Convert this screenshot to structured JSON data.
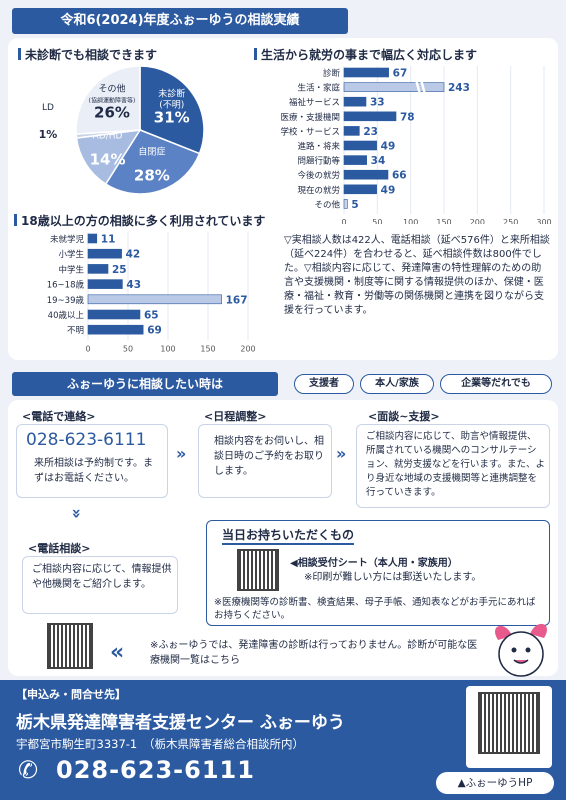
{
  "header": {
    "title": "令和6(2024)年度ふぉーゆうの相談実績"
  },
  "pie": {
    "heading": "未診断でも相談できます",
    "slices": [
      {
        "label": "未診断\n(不明)",
        "value": 31,
        "color": "#2c5aa0",
        "text_color": "#ffffff"
      },
      {
        "label": "自閉症",
        "value": 28,
        "color": "#5b82c4",
        "text_color": "#ffffff"
      },
      {
        "label": "AD/HD",
        "value": 14,
        "color": "#a7bce0",
        "text_color": "#ffffff"
      },
      {
        "label": "LD",
        "value": 1,
        "color": "#c9d4e6",
        "text_color": "#1f2a44"
      },
      {
        "label": "その他",
        "sublabel": "(協調運動障害等)",
        "value": 26,
        "color": "#e9eef7",
        "text_color": "#1f2a44"
      }
    ]
  },
  "chart_data": [
    {
      "type": "bar",
      "title": "生活から就労の事まで幅広く対応します",
      "categories": [
        "診断",
        "生活・家庭",
        "福祉サービス",
        "医療・支援機関",
        "学校・サービス",
        "進路・将来",
        "問題行動等",
        "今後の就労",
        "現在の就労",
        "その他"
      ],
      "values": [
        67,
        243,
        33,
        78,
        23,
        49,
        34,
        66,
        49,
        5
      ],
      "xlim": [
        0,
        300
      ],
      "xticks": [
        0,
        50,
        100,
        150,
        200,
        250,
        300
      ],
      "axis_break": true
    },
    {
      "type": "bar",
      "title": "18歳以上の方の相談に多く利用されています",
      "categories": [
        "未就学児",
        "小学生",
        "中学生",
        "16~18歳",
        "19~39歳",
        "40歳以上",
        "不明"
      ],
      "values": [
        11,
        42,
        25,
        43,
        167,
        65,
        69
      ],
      "xlim": [
        0,
        200
      ],
      "xticks": [
        0,
        50,
        100,
        150,
        200
      ]
    }
  ],
  "stats_note": "▽実相談人数は422人、電話相談（延べ576件）と来所相談（延べ224件）を合わせると、延べ相談件数は800件でした。▽相談内容に応じて、発達障害の特性理解のための助言や支援機関・制度等に関する情報提供のほか、保健・医療・福祉・教育・労働等の関係機関と連携を図りながら支援を行っています。",
  "howto": {
    "title": "ふぉーゆうに相談したい時は",
    "tags": [
      "支援者",
      "本人/家族",
      "企業等だれでも"
    ],
    "phone": {
      "heading": "<電話で連絡>",
      "number": "028-623-6111",
      "text": "来所相談は予約制です。まずはお電話ください。"
    },
    "schedule": {
      "heading": "<日程調整>",
      "text": "相談内容をお伺いし、相談日時のご予約をお取りします。"
    },
    "interview": {
      "heading": "<面談~支援>",
      "text": "ご相談内容に応じて、助言や情報提供、所属されている機関へのコンサルテーション、就労支援などを行います。また、より身近な地域の支援機関等と連携調整を行っていきます。"
    },
    "phone_consult": {
      "heading": "<電話相談>",
      "text": "ご相談内容に応じて、情報提供や他機関をご紹介します。"
    },
    "bring": {
      "heading": "当日お持ちいただくもの",
      "item": "◀相談受付シート（本人用・家族用）",
      "item_note": "※印刷が難しい方には郵送いたします。",
      "note": "※医療機関等の診断書、検査結果、母子手帳、通知表などがお手元にあればお持ちください。"
    },
    "diagnosis_note": "※ふぉーゆうでは、発達障害の診断は行っておりません。診断が可能な医療機関一覧はこちら"
  },
  "footer": {
    "contact_label": "【申込み・問合せ先】",
    "org": "栃木県発達障害者支援センター ふぉーゆう",
    "address": "宇都宮市駒生町3337-1　（栃木県障害者総合相談所内）",
    "phone": "028-623-6111",
    "hp_label": "▲ふぉーゆうHP"
  }
}
